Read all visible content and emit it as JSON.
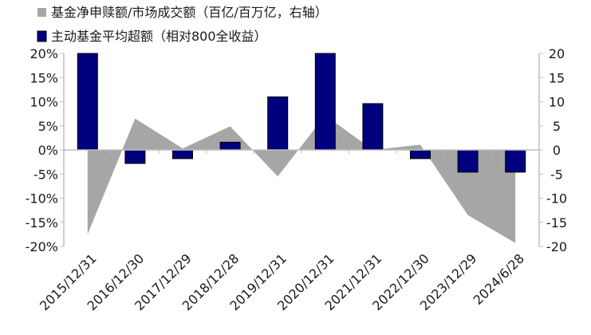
{
  "chart_data": {
    "type": "bar",
    "categories": [
      "2015/12/31",
      "2016/12/30",
      "2017/12/29",
      "2018/12/28",
      "2019/12/31",
      "2020/12/31",
      "2021/12/31",
      "2022/12/30",
      "2023/12/29",
      "2024/6/28"
    ],
    "series": [
      {
        "name": "基金净申赎额/市场成交额（百亿/百万亿，右轴）",
        "type": "area",
        "axis": "right",
        "color": "#a6a6a6",
        "values": [
          -17.5,
          6.5,
          0.3,
          4.9,
          -5.5,
          7.2,
          0.0,
          1.1,
          -13.5,
          -19.3
        ]
      },
      {
        "name": "主动基金平均超额（相对800全收益）",
        "type": "bar",
        "axis": "left",
        "color": "#00007f",
        "values": [
          20,
          -2.8,
          -1.8,
          1.6,
          11.0,
          20,
          9.6,
          -1.8,
          -4.6,
          -4.6
        ]
      }
    ],
    "y_left": {
      "ylim": [
        -20,
        20
      ],
      "ticks": [
        20,
        15,
        10,
        5,
        0,
        -5,
        -10,
        -15,
        -20
      ],
      "tick_labels": [
        "20%",
        "15%",
        "10%",
        "5%",
        "0%",
        "-5%",
        "-10%",
        "-15%",
        "-20%"
      ]
    },
    "y_right": {
      "ylim": [
        -20,
        20
      ],
      "ticks": [
        20,
        15,
        10,
        5,
        0,
        -5,
        -10,
        -15,
        -20
      ],
      "tick_labels": [
        "20",
        "15",
        "10",
        "5",
        "0",
        "-5",
        "-10",
        "-15",
        "-20"
      ]
    },
    "grid": false,
    "legend_position": "top-left",
    "xlabel": "",
    "ylabel": "",
    "title": ""
  }
}
